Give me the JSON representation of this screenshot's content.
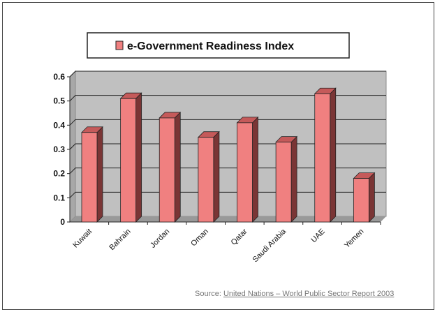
{
  "chart_data": {
    "type": "bar",
    "title": "",
    "legend": {
      "entries": [
        "e-Government Readiness Index"
      ],
      "placement": "top"
    },
    "categories": [
      "Kuwait",
      "Bahrain",
      "Jordan",
      "Oman",
      "Qatar",
      "Saudi Arabia",
      "UAE",
      "Yemen"
    ],
    "series": [
      {
        "name": "e-Government Readiness Index",
        "values": [
          0.37,
          0.51,
          0.43,
          0.35,
          0.41,
          0.33,
          0.53,
          0.18
        ]
      }
    ],
    "xlabel": "",
    "ylabel": "",
    "ylim": [
      0,
      0.6
    ],
    "yticks": [
      "0",
      "0.1",
      "0.2",
      "0.3",
      "0.4",
      "0.5",
      "0.6"
    ],
    "grid": true,
    "style": "3d-column",
    "colors": {
      "bar_front": "#f08080",
      "bar_side": "#7a3535",
      "bar_top": "#c55a5a",
      "wall": "#c0c0c0"
    }
  },
  "source": {
    "prefix": "Source: ",
    "link": "United Nations – World Public Sector Report 2003"
  }
}
